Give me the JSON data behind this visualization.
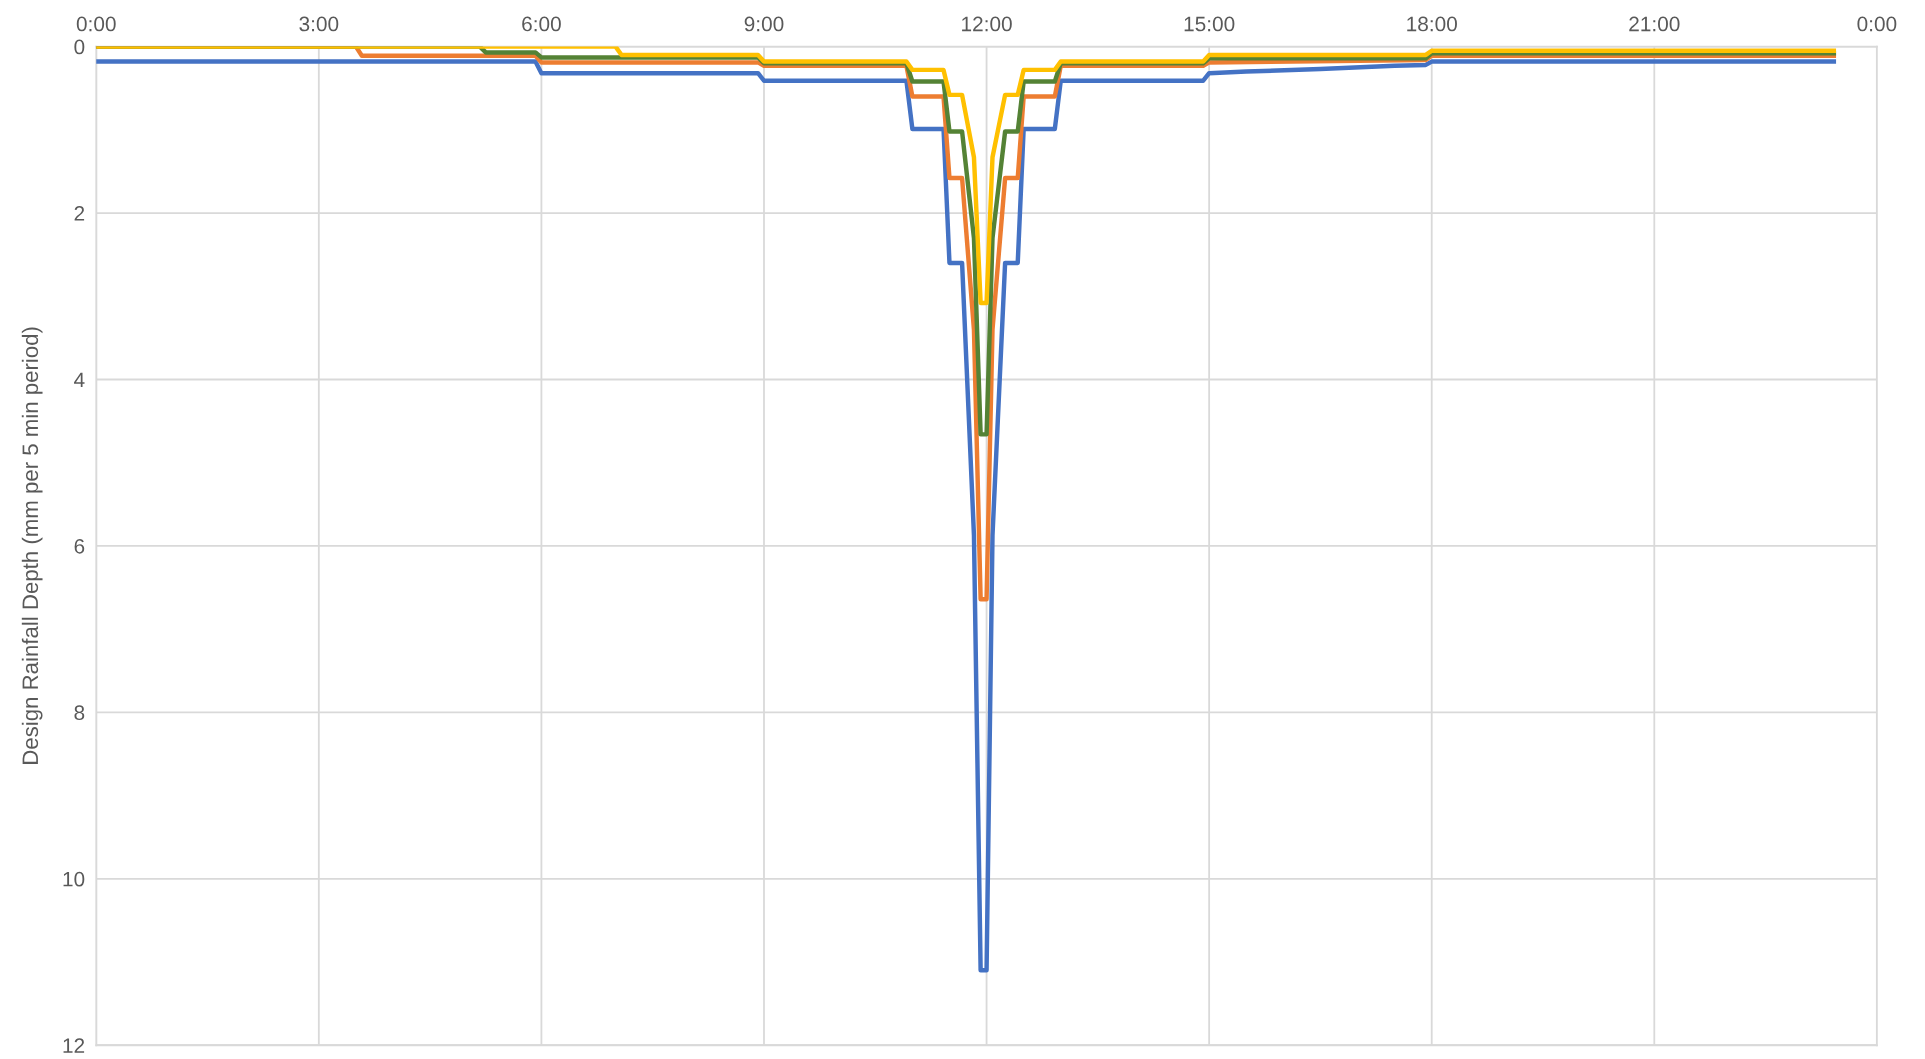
{
  "chart_data": {
    "type": "line",
    "ylabel": "Design Rainfall Depth (mm per 5 min period)",
    "xlim": [
      0,
      24
    ],
    "xticks": [
      {
        "value": 0,
        "label": "0:00"
      },
      {
        "value": 3,
        "label": "3:00"
      },
      {
        "value": 6,
        "label": "6:00"
      },
      {
        "value": 9,
        "label": "9:00"
      },
      {
        "value": 12,
        "label": "12:00"
      },
      {
        "value": 15,
        "label": "15:00"
      },
      {
        "value": 18,
        "label": "18:00"
      },
      {
        "value": 21,
        "label": "21:00"
      },
      {
        "value": 24,
        "label": "0:00"
      }
    ],
    "ylim": [
      12,
      0
    ],
    "yticks": [
      0,
      2,
      4,
      6,
      8,
      10,
      12
    ],
    "grid": true,
    "marker": "none",
    "line_style": "solid",
    "series": [
      {
        "color": "#4472c4",
        "x": [
          0,
          5.92,
          6.0,
          8.92,
          9.0,
          10.92,
          11.0,
          11.42,
          11.5,
          11.67,
          11.83,
          11.92,
          12.0,
          12.08,
          12.25,
          12.42,
          12.5,
          12.92,
          13.0,
          14.92,
          15.0,
          15.5,
          16.5,
          17.5,
          17.92,
          18.0,
          23.42
        ],
        "values": [
          0.18,
          0.18,
          0.32,
          0.32,
          0.41,
          0.41,
          0.99,
          0.99,
          2.6,
          2.6,
          5.87,
          11.1,
          11.1,
          5.87,
          2.6,
          2.6,
          0.99,
          0.99,
          0.41,
          0.41,
          0.32,
          0.3,
          0.27,
          0.23,
          0.22,
          0.18,
          0.18
        ]
      },
      {
        "color": "#ed7d31",
        "x": [
          0,
          3.5,
          3.58,
          5.92,
          6.0,
          8.92,
          9.0,
          10.92,
          11.0,
          11.42,
          11.5,
          11.67,
          11.83,
          11.92,
          12.0,
          12.08,
          12.25,
          12.42,
          12.5,
          12.92,
          13.0,
          14.92,
          15.0,
          17.92,
          18.0,
          23.42
        ],
        "values": [
          0,
          0,
          0.11,
          0.11,
          0.19,
          0.19,
          0.23,
          0.23,
          0.6,
          0.6,
          1.58,
          1.58,
          3.4,
          6.64,
          6.64,
          3.4,
          1.58,
          1.58,
          0.6,
          0.6,
          0.23,
          0.23,
          0.19,
          0.16,
          0.11,
          0.11
        ]
      },
      {
        "color": "#548235",
        "x": [
          0,
          5.17,
          5.25,
          5.92,
          6.0,
          8.92,
          9.0,
          10.92,
          11.0,
          11.42,
          11.5,
          11.67,
          11.83,
          11.92,
          12.0,
          12.08,
          12.25,
          12.42,
          12.5,
          12.92,
          13.0,
          14.92,
          15.0,
          17.92,
          18.0,
          23.42
        ],
        "values": [
          0,
          0,
          0.07,
          0.07,
          0.13,
          0.13,
          0.2,
          0.2,
          0.42,
          0.42,
          1.02,
          1.02,
          2.3,
          4.66,
          4.66,
          2.3,
          1.02,
          1.02,
          0.42,
          0.42,
          0.2,
          0.2,
          0.14,
          0.14,
          0.08,
          0.08
        ]
      },
      {
        "color": "#ffc000",
        "x": [
          0,
          7.0,
          7.08,
          8.92,
          9.0,
          10.92,
          11.0,
          11.42,
          11.5,
          11.67,
          11.83,
          11.92,
          12.0,
          12.08,
          12.25,
          12.42,
          12.5,
          12.92,
          13.0,
          14.92,
          15.0,
          17.92,
          18.0,
          23.42
        ],
        "values": [
          0,
          0,
          0.1,
          0.1,
          0.18,
          0.18,
          0.28,
          0.28,
          0.58,
          0.58,
          1.33,
          3.08,
          3.08,
          1.33,
          0.58,
          0.58,
          0.28,
          0.28,
          0.18,
          0.18,
          0.1,
          0.1,
          0.05,
          0.05
        ]
      }
    ]
  }
}
